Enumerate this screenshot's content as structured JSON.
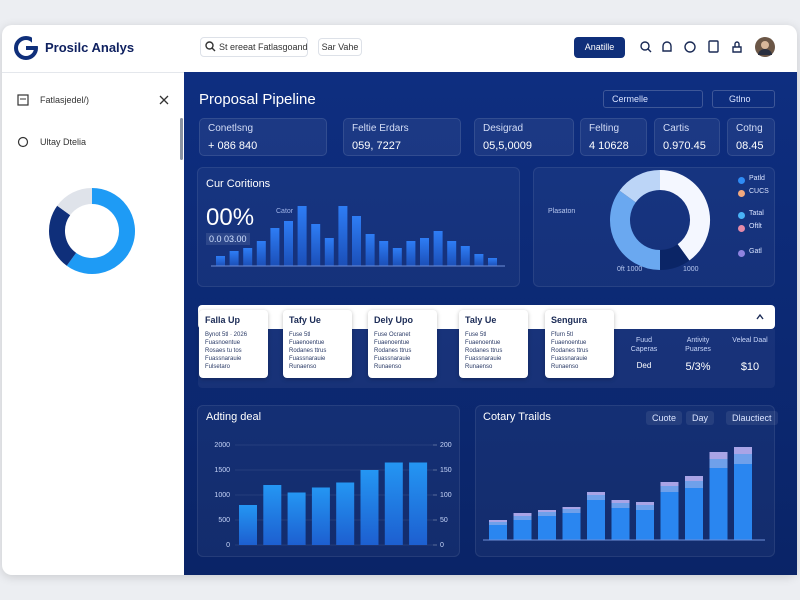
{
  "header": {
    "brand": "Prosilc Analys",
    "search": "St ereeat Fatlasgoand",
    "filter": "Sar Vahe",
    "button": "Anatille"
  },
  "sidebar": {
    "items": [
      "Fatlasjedel/)",
      "Ultay Dtelia"
    ]
  },
  "main": {
    "title": "Proposal Pipeline",
    "selects": [
      "Cermelle",
      "Gtlno"
    ],
    "stats": [
      {
        "label": "Conetlsng",
        "value": "+ 086 840"
      },
      {
        "label": "Feltie Erdars",
        "value": "059, 7227"
      },
      {
        "label": "Desigrad",
        "value": "05,5,0009"
      },
      {
        "label": "Felting",
        "value": "4 10628"
      },
      {
        "label": "Cartis",
        "value": "0.970.45"
      },
      {
        "label": "Cotng",
        "value": "08.45"
      }
    ],
    "cards": [
      {
        "title": "Falla Up",
        "lines": [
          "Bynot 5tl · 2026",
          "Fuasnoentue",
          "Rosaes tu tos",
          "Fuassnarauie",
          "Fulsetaro"
        ]
      },
      {
        "title": "Tafy Ue",
        "lines": [
          "Fuse 5tl",
          "Fuaenoentue",
          "Rodanes ttrus",
          "Fuassnarauie",
          "Runaenso"
        ]
      },
      {
        "title": "Dely Upo",
        "lines": [
          "Fuse Ocranet",
          "Fuaenoentue",
          "Rodanes ttrus",
          "Fuassnarauie",
          "Runaenso"
        ]
      },
      {
        "title": "Taly Ue",
        "lines": [
          "Fuse 5tl",
          "Fuaenoentue",
          "Rodanes ttrus",
          "Fuassnarauie",
          "Runaenso"
        ]
      },
      {
        "title": "Sengura",
        "lines": [
          "Ffurn 5tl",
          "Fuaenoentue",
          "Rodanes ttrus",
          "Fuassnarauie",
          "Runaenso"
        ]
      }
    ],
    "table": {
      "headers": [
        "Fuud Caperas",
        "Antivity Puarses",
        "Veleal Daal"
      ],
      "values": [
        "Ded",
        "5/3%",
        "$10"
      ]
    },
    "tabs": [
      "Cuote",
      "Day",
      "Dlauctiect"
    ]
  },
  "chart_data": [
    {
      "type": "donut",
      "values": [
        60,
        25,
        15
      ],
      "colors": [
        "#1e9bf5",
        "#0f2f7a",
        "#dfe3ea"
      ]
    },
    {
      "type": "bar",
      "title": "Cur Coritions",
      "annotations": [
        "00%",
        "0.0 03.00",
        "Cator"
      ],
      "color": "#2e7df5",
      "values": [
        10,
        15,
        18,
        25,
        38,
        45,
        60,
        42,
        28,
        60,
        50,
        32,
        25,
        18,
        25,
        28,
        35,
        25,
        20,
        12,
        8
      ]
    },
    {
      "type": "donut",
      "values": [
        40,
        10,
        35,
        15
      ],
      "colors": [
        "#f4f7ff",
        "#0b2566",
        "#6aa8f0",
        "#bcd5f7"
      ],
      "annotations": [
        "Plasaton",
        "0ft 1000",
        "1000"
      ],
      "legend": [
        {
          "name": "Patld",
          "color": "#2f8cf5"
        },
        {
          "name": "CUCS",
          "color": "#f2a97e"
        },
        {
          "name": "Tatal",
          "color": "#49b3f7"
        },
        {
          "name": "Oftlt",
          "color": "#e58aa8"
        },
        {
          "name": "Gatl",
          "color": "#8f83e0"
        }
      ]
    },
    {
      "type": "bar",
      "title": "Adting deal",
      "color": "#2496f3",
      "values": [
        800,
        1200,
        1050,
        1150,
        1250,
        1500,
        1650,
        1650
      ],
      "ylim": [
        0,
        2000
      ],
      "yticks": [
        0,
        500,
        1000,
        1500,
        2000
      ],
      "y2lim": [
        0,
        200
      ],
      "y2ticks": [
        0,
        50,
        100,
        150,
        200
      ]
    },
    {
      "type": "stacked-bar",
      "title": "Cotary Trailds",
      "series": [
        {
          "color": "#2a86f0",
          "values": [
            15,
            20,
            24,
            27,
            40,
            32,
            30,
            48,
            52,
            72,
            76
          ]
        },
        {
          "color": "#6fa0ea",
          "values": [
            3,
            4,
            4,
            4,
            5,
            5,
            5,
            6,
            7,
            9,
            10
          ]
        },
        {
          "color": "#a9a4e6",
          "values": [
            2,
            3,
            2,
            2,
            3,
            3,
            3,
            4,
            5,
            7,
            7
          ]
        }
      ]
    }
  ]
}
